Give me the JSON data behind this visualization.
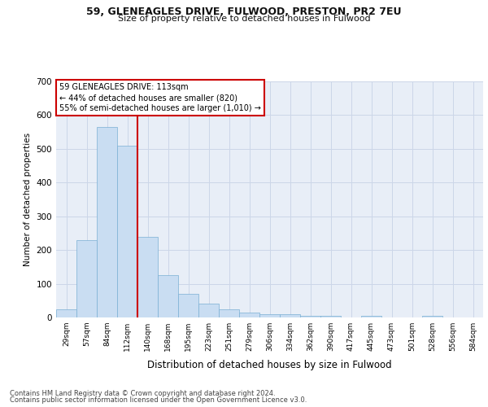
{
  "title1": "59, GLENEAGLES DRIVE, FULWOOD, PRESTON, PR2 7EU",
  "title2": "Size of property relative to detached houses in Fulwood",
  "xlabel": "Distribution of detached houses by size in Fulwood",
  "ylabel": "Number of detached properties",
  "categories": [
    "29sqm",
    "57sqm",
    "84sqm",
    "112sqm",
    "140sqm",
    "168sqm",
    "195sqm",
    "223sqm",
    "251sqm",
    "279sqm",
    "306sqm",
    "334sqm",
    "362sqm",
    "390sqm",
    "417sqm",
    "445sqm",
    "473sqm",
    "501sqm",
    "528sqm",
    "556sqm",
    "584sqm"
  ],
  "values": [
    25,
    230,
    565,
    510,
    240,
    125,
    70,
    40,
    25,
    15,
    10,
    10,
    5,
    5,
    0,
    5,
    0,
    0,
    5,
    0,
    0
  ],
  "bar_color": "#c9ddf2",
  "bar_edge_color": "#7aafd4",
  "grid_color": "#ccd6e8",
  "bg_color": "#e8eef7",
  "annotation_text": "59 GLENEAGLES DRIVE: 113sqm\n← 44% of detached houses are smaller (820)\n55% of semi-detached houses are larger (1,010) →",
  "annotation_box_color": "#ffffff",
  "annotation_box_edge": "#cc0000",
  "ylim": [
    0,
    700
  ],
  "yticks": [
    0,
    100,
    200,
    300,
    400,
    500,
    600,
    700
  ],
  "footer1": "Contains HM Land Registry data © Crown copyright and database right 2024.",
  "footer2": "Contains public sector information licensed under the Open Government Licence v3.0."
}
